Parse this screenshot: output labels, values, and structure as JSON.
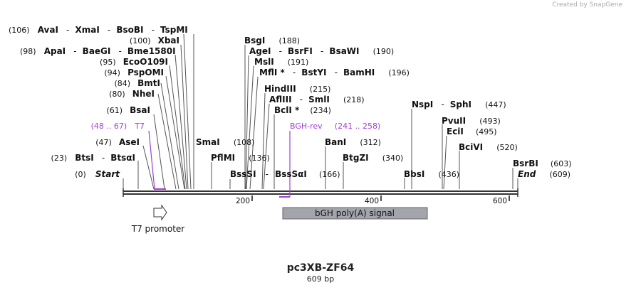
{
  "credit": "Created by SnapGene",
  "plasmid": {
    "name": "pc3XB-ZF64",
    "length_label": "609 bp"
  },
  "ticks": [
    "200",
    "400",
    "600"
  ],
  "start_label": {
    "pos": "(0)",
    "name": "Start"
  },
  "end_label": {
    "name": "End",
    "pos": "(609)"
  },
  "enzymes": {
    "AvaI_row": {
      "pos": "(106)",
      "names": [
        "AvaI",
        "XmaI",
        "BsoBI",
        "TspMI"
      ]
    },
    "XbaI": {
      "pos": "(100)",
      "name": "XbaI"
    },
    "ApaI_row": {
      "pos": "(98)",
      "names": [
        "ApaI",
        "BaeGI",
        "Bme1580I"
      ]
    },
    "EcoO109I": {
      "pos": "(95)",
      "name": "EcoO109I"
    },
    "PspOMI": {
      "pos": "(94)",
      "name": "PspOMI"
    },
    "BmtI": {
      "pos": "(84)",
      "name": "BmtI"
    },
    "NheI": {
      "pos": "(80)",
      "name": "NheI"
    },
    "BsaI": {
      "pos": "(61)",
      "name": "BsaI"
    },
    "AseI": {
      "pos": "(47)",
      "name": "AseI"
    },
    "BtsI_row": {
      "pos": "(23)",
      "names": [
        "BtsI",
        "BtsαI"
      ]
    },
    "SmaI": {
      "name": "SmaI",
      "pos": "(108)"
    },
    "PflMI": {
      "name": "PflMI",
      "pos": "(136)"
    },
    "BssSI_row": {
      "names": [
        "BssSI",
        "BssSαI"
      ],
      "pos": "(166)"
    },
    "BsgI": {
      "name": "BsgI",
      "pos": "(188)"
    },
    "AgeI_row": {
      "names": [
        "AgeI",
        "BsrFI",
        "BsaWI"
      ],
      "pos": "(190)"
    },
    "MslI": {
      "name": "MslI",
      "pos": "(191)"
    },
    "MflI_row": {
      "names": [
        "MflI *",
        "BstYI",
        "BamHI"
      ],
      "pos": "(196)"
    },
    "HindIII": {
      "name": "HindIII",
      "pos": "(215)"
    },
    "AflIII_row": {
      "names": [
        "AflIII",
        "SmlI"
      ],
      "pos": "(218)"
    },
    "BclI": {
      "name": "BclI *",
      "pos": "(234)"
    },
    "BanI": {
      "name": "BanI",
      "pos": "(312)"
    },
    "BtgZI": {
      "name": "BtgZI",
      "pos": "(340)"
    },
    "NspI_row": {
      "names": [
        "NspI",
        "SphI"
      ],
      "pos": "(447)"
    },
    "BbsI": {
      "name": "BbsI",
      "pos": "(436)"
    },
    "PvuII": {
      "name": "PvuII",
      "pos": "(493)"
    },
    "EciI": {
      "name": "EciI",
      "pos": "(495)"
    },
    "BciVI": {
      "name": "BciVI",
      "pos": "(520)"
    },
    "BsrBI": {
      "name": "BsrBI",
      "pos": "(603)"
    }
  },
  "primers": {
    "T7": {
      "range": "(48 .. 67)",
      "name": "T7"
    },
    "BGHrev": {
      "name": "BGH-rev",
      "range": "(241 .. 258)"
    }
  },
  "features": {
    "t7_promoter": "T7 promoter",
    "bgh_polya": "bGH poly(A) signal"
  },
  "colors": {
    "primer": "#a33ed6",
    "feature_fill": "#a2a6ac",
    "backbone": "#333333"
  }
}
